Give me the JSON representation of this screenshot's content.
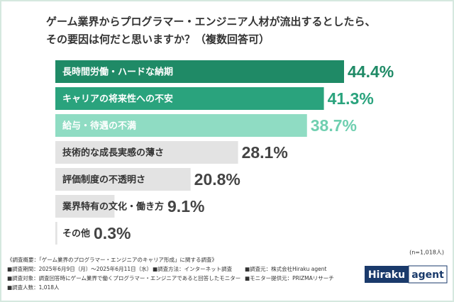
{
  "chart_data": {
    "type": "bar",
    "orientation": "horizontal",
    "title": [
      "ゲーム業界からプログラマー・エンジニア人材が流出するとしたら、",
      "その要因は何だと思いますか？（複数回答可）"
    ],
    "categories": [
      "長時間労働・ハードな納期",
      "キャリアの将来性への不安",
      "給与・待遇の不満",
      "技術的な成長実感の薄さ",
      "評価制度の不透明さ",
      "業界特有の文化・働き方",
      "その他"
    ],
    "values": [
      44.4,
      41.3,
      38.7,
      28.1,
      20.8,
      9.1,
      0.3
    ],
    "value_labels": [
      "44.4%",
      "41.3%",
      "38.7%",
      "28.1%",
      "20.8%",
      "9.1%",
      "0.3%"
    ],
    "colors": [
      "#1f8a66",
      "#2aa37d",
      "#8fdcc3",
      "#e3e3e3",
      "#e3e3e3",
      "#e3e3e3",
      "#e3e3e3"
    ],
    "label_colors": [
      "#ffffff",
      "#ffffff",
      "#ffffff",
      "#333333",
      "#333333",
      "#333333",
      "#333333"
    ],
    "value_colors": [
      "#1f8a66",
      "#2aa37d",
      "#6fcfb0",
      "#444444",
      "#444444",
      "#444444",
      "#444444"
    ],
    "sample_note": "(n=1,018人)"
  },
  "survey": {
    "heading": "《調査概要：「ゲーム業界のプログラマー・エンジニアのキャリア形成」に関する調査》",
    "notes": [
      "■調査期間：2025年6月9日（月）～2025年6月11日（水）",
      "■調査方法：インターネット調査",
      "■調査元：株式会社Hiraku agent",
      "■調査対象：調査回答時にゲーム業界で働くプログラマー・エンジニアであると回答したモニター",
      "■モニター提供元：PRIZMAリサーチ",
      "■調査人数：1,018人"
    ]
  },
  "logo": [
    "Hiraku",
    "agent"
  ]
}
